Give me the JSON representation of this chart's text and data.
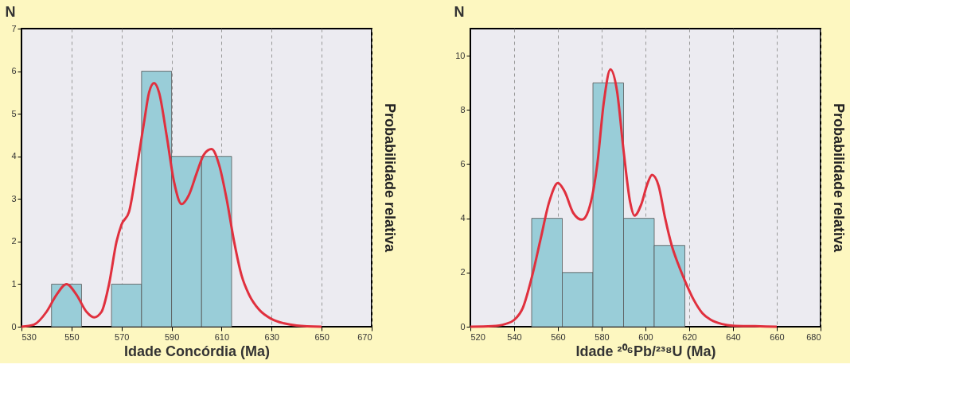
{
  "chart_data": [
    {
      "type": "histogram",
      "bins": [
        542,
        554,
        566,
        578,
        590,
        602,
        614
      ],
      "values": [
        1,
        0,
        1,
        6,
        4,
        4
      ],
      "color": "#99cdd8",
      "series": [
        {
          "type": "line",
          "color": "#e0303e",
          "x": [
            530,
            535,
            540,
            544,
            548,
            552,
            556,
            559,
            562,
            565,
            568,
            570,
            573,
            576,
            579,
            581,
            583,
            585,
            588,
            591,
            594,
            597,
            600,
            603,
            606,
            609,
            612,
            615,
            618,
            621,
            625,
            630,
            635,
            640,
            650
          ],
          "values": [
            0,
            0.05,
            0.35,
            0.75,
            1.0,
            0.75,
            0.35,
            0.22,
            0.35,
            1.0,
            2.0,
            2.4,
            2.7,
            3.7,
            4.8,
            5.5,
            5.72,
            5.5,
            4.5,
            3.4,
            2.88,
            3.1,
            3.6,
            4.05,
            4.17,
            3.8,
            3.0,
            2.0,
            1.2,
            0.75,
            0.4,
            0.18,
            0.08,
            0.03,
            0
          ]
        }
      ],
      "xlabel": "Idade Concórdia (Ma)",
      "ylabel": "N",
      "y2label": "Probabilidade relativa",
      "xlim": [
        530,
        670
      ],
      "xticks": [
        530,
        550,
        570,
        590,
        610,
        630,
        650,
        670
      ],
      "ylim": [
        0,
        7
      ],
      "yticks": [
        0,
        1,
        2,
        3,
        4,
        5,
        6,
        7
      ],
      "grid": "x",
      "line_style": "solid",
      "marker": "none"
    },
    {
      "type": "histogram",
      "bins": [
        548,
        562,
        576,
        590,
        604,
        618
      ],
      "values": [
        4,
        2,
        9,
        4,
        3
      ],
      "color": "#99cdd8",
      "series": [
        {
          "type": "line",
          "color": "#e0303e",
          "x": [
            520,
            530,
            536,
            540,
            544,
            548,
            552,
            556,
            560,
            563,
            567,
            571,
            574,
            578,
            581,
            584,
            587,
            590,
            593,
            595,
            598,
            601,
            603,
            606,
            609,
            612,
            615,
            618,
            622,
            626,
            630,
            635,
            640,
            650,
            660
          ],
          "values": [
            0,
            0.02,
            0.1,
            0.25,
            0.7,
            1.8,
            3.2,
            4.6,
            5.3,
            5.0,
            4.2,
            3.95,
            4.3,
            6.0,
            8.3,
            9.5,
            8.7,
            6.5,
            4.6,
            4.1,
            4.5,
            5.3,
            5.6,
            5.2,
            4.0,
            3.0,
            2.3,
            1.7,
            1.0,
            0.5,
            0.25,
            0.1,
            0.04,
            0.02,
            0
          ]
        }
      ],
      "xlabel": "Idade ²⁰⁶Pb/²³⁸U (Ma)",
      "ylabel": "N",
      "y2label": "Probabilidade relativa",
      "xlim": [
        520,
        680
      ],
      "xticks": [
        520,
        540,
        560,
        580,
        600,
        620,
        640,
        660,
        680
      ],
      "ylim": [
        0,
        11
      ],
      "yticks": [
        0,
        2,
        4,
        6,
        8,
        10
      ],
      "grid": "x",
      "line_style": "solid",
      "marker": "none"
    }
  ]
}
